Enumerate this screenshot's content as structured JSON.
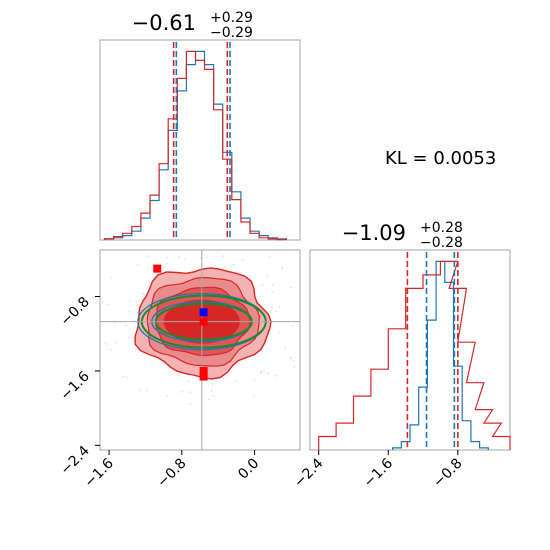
{
  "chart_data": {
    "type": "corner",
    "colors": {
      "blue": "#1f77b4",
      "red": "#d62728",
      "green": "#1a8a2e",
      "gray": "#a6a6a6",
      "marker_blue": "#0000ff",
      "marker_red": "#ff0000"
    },
    "kl_text": "KL = 0.0053",
    "params": [
      {
        "title_main": "−0.61",
        "title_sup": "+0.29",
        "title_sub": "−0.29",
        "xlim": [
          -1.7,
          0.5
        ],
        "quantiles_blue": [
          -0.86,
          -0.27
        ],
        "quantiles_red": [
          -0.89,
          -0.3
        ],
        "hist_blue": [
          [
            -1.6,
            0.5
          ],
          [
            -1.5,
            1
          ],
          [
            -1.4,
            2
          ],
          [
            -1.3,
            4
          ],
          [
            -1.2,
            10
          ],
          [
            -1.1,
            18
          ],
          [
            -1.0,
            32
          ],
          [
            -0.9,
            50
          ],
          [
            -0.8,
            68
          ],
          [
            -0.7,
            80
          ],
          [
            -0.6,
            86
          ],
          [
            -0.5,
            80
          ],
          [
            -0.4,
            62
          ],
          [
            -0.3,
            40
          ],
          [
            -0.2,
            22
          ],
          [
            -0.1,
            10
          ],
          [
            0.0,
            4
          ],
          [
            0.1,
            2
          ],
          [
            0.2,
            1
          ],
          [
            0.3,
            0.5
          ]
        ],
        "hist_red": [
          [
            -1.6,
            0.5
          ],
          [
            -1.5,
            1.5
          ],
          [
            -1.4,
            3
          ],
          [
            -1.3,
            6
          ],
          [
            -1.2,
            12
          ],
          [
            -1.1,
            20
          ],
          [
            -1.0,
            34
          ],
          [
            -0.9,
            54
          ],
          [
            -0.8,
            72
          ],
          [
            -0.7,
            84
          ],
          [
            -0.6,
            80
          ],
          [
            -0.5,
            76
          ],
          [
            -0.4,
            58
          ],
          [
            -0.3,
            36
          ],
          [
            -0.2,
            18
          ],
          [
            -0.1,
            8
          ],
          [
            0.0,
            3
          ],
          [
            0.1,
            1
          ],
          [
            0.2,
            0.5
          ],
          [
            0.3,
            0.2
          ]
        ]
      },
      {
        "title_main": "−1.09",
        "title_sup": "+0.28",
        "title_sub": "−0.28",
        "xlim": [
          -2.5,
          -0.2
        ],
        "quantiles_blue": [
          -1.16,
          -0.84
        ],
        "quantiles_red": [
          -1.38,
          -0.8
        ],
        "hist_blue": [
          [
            -1.5,
            1
          ],
          [
            -1.4,
            4
          ],
          [
            -1.3,
            12
          ],
          [
            -1.2,
            30
          ],
          [
            -1.1,
            62
          ],
          [
            -1.0,
            90
          ],
          [
            -0.9,
            80
          ],
          [
            -0.8,
            40
          ],
          [
            -0.7,
            14
          ],
          [
            -0.6,
            4
          ],
          [
            -0.5,
            1
          ]
        ],
        "hist_red": [
          [
            -2.3,
            1
          ],
          [
            -2.1,
            2
          ],
          [
            -1.9,
            4
          ],
          [
            -1.7,
            6
          ],
          [
            -1.5,
            9
          ],
          [
            -1.3,
            12
          ],
          [
            -1.1,
            13
          ],
          [
            -0.9,
            14
          ],
          [
            -0.8,
            12
          ],
          [
            -0.7,
            8
          ],
          [
            -0.6,
            5
          ],
          [
            -0.5,
            3
          ],
          [
            -0.4,
            2
          ],
          [
            -0.3,
            1
          ]
        ]
      }
    ],
    "joint": {
      "xlim": [
        -1.7,
        0.5
      ],
      "ylim": [
        -2.45,
        -0.3
      ],
      "x_ticks": [
        "−1.6",
        "−0.8",
        "0.0"
      ],
      "x_tick_values": [
        -1.6,
        -0.8,
        0.0
      ],
      "y_ticks": [
        "−0.8",
        "−1.6",
        "−2.4"
      ],
      "y_tick_values": [
        -0.8,
        -1.6,
        -2.4
      ],
      "marginal2_ticks": [
        "−2.4",
        "−1.6",
        "−0.8"
      ],
      "marginal2_tick_values": [
        -2.4,
        -1.6,
        -0.8
      ],
      "center": [
        -0.58,
        -1.07
      ],
      "grid_x": [
        -0.58
      ],
      "grid_y": [
        -1.07
      ],
      "markers_blue": [
        [
          -0.56,
          -0.97
        ]
      ],
      "markers_red": [
        [
          -1.07,
          -0.5
        ],
        [
          -0.56,
          -1.07
        ],
        [
          -0.56,
          -1.6
        ],
        [
          -0.56,
          -1.66
        ]
      ]
    }
  }
}
